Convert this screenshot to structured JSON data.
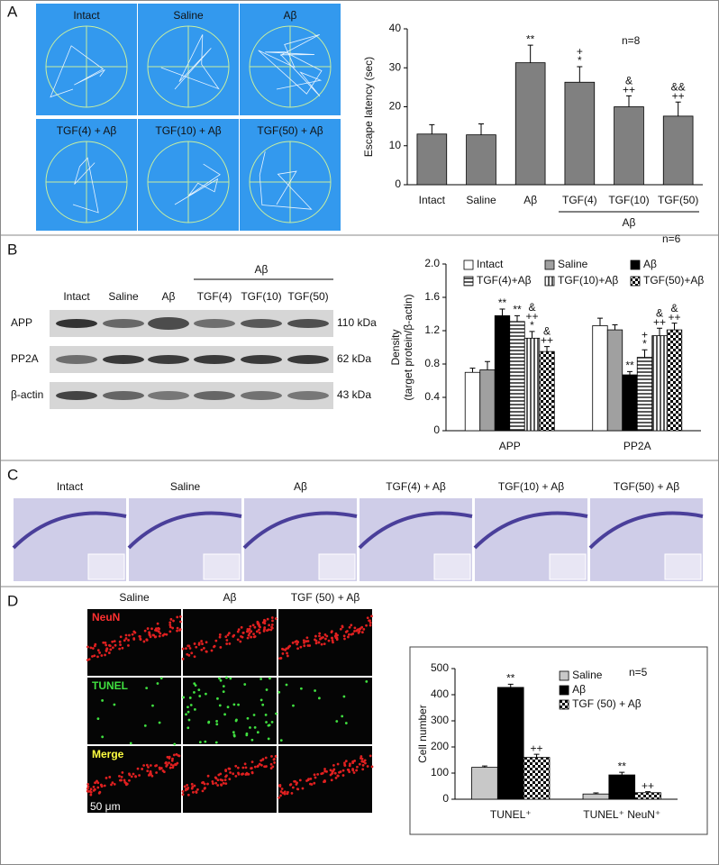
{
  "panel_labels": [
    "A",
    "B",
    "C",
    "D"
  ],
  "maze": {
    "labels": [
      "Intact",
      "Saline",
      "Aβ",
      "TGF(4) + Aβ",
      "TGF(10) + Aβ",
      "TGF(50) + Aβ"
    ]
  },
  "blot": {
    "group_label": "Aβ",
    "columns": [
      "Intact",
      "Saline",
      "Aβ",
      "TGF(4)",
      "TGF(10)",
      "TGF(50)"
    ],
    "rows": [
      {
        "name": "APP",
        "size": "110 kDa"
      },
      {
        "name": "PP2A",
        "size": "62 kDa"
      },
      {
        "name": "β-actin",
        "size": "43 kDa"
      }
    ]
  },
  "histology": {
    "labels": [
      "Intact",
      "Saline",
      "Aβ",
      "TGF(4) + Aβ",
      "TGF(10) + Aβ",
      "TGF(50) + Aβ"
    ]
  },
  "fluorescence": {
    "columns": [
      "Saline",
      "Aβ",
      "TGF (50) + Aβ"
    ],
    "rows": [
      "NeuN",
      "TUNEL",
      "Merge"
    ],
    "scale": "50 μm"
  },
  "chart_data": [
    {
      "type": "bar",
      "ylabel": "Escape latency (sec)",
      "sample_size": "n=8",
      "categories": [
        "Intact",
        "Saline",
        "Aβ",
        "TGF(4)",
        "TGF(10)",
        "TGF(50)"
      ],
      "values": [
        13,
        12.8,
        31.3,
        26.3,
        20,
        17.6
      ],
      "errors": [
        2.4,
        2.8,
        4.5,
        4,
        2.8,
        3.6
      ],
      "annotations": [
        null,
        null,
        [
          "**"
        ],
        [
          "+",
          "*"
        ],
        [
          "&",
          "++"
        ],
        [
          "&&",
          "++"
        ]
      ],
      "group": {
        "label": "Aβ",
        "span": [
          3,
          5
        ]
      },
      "color": "#808080",
      "ylim": [
        0,
        40
      ],
      "yticks": [
        0,
        10,
        20,
        30,
        40
      ]
    },
    {
      "type": "bar",
      "ylabel": [
        "Density",
        "(target protein/β-actin)"
      ],
      "sample_size": "n=6",
      "categories": [
        "APP",
        "PP2A"
      ],
      "legend": "top",
      "series": [
        {
          "name": "Intact",
          "color": "#ffffff",
          "pattern": "solid",
          "values": [
            0.7,
            1.26
          ],
          "errors": [
            0.05,
            0.09
          ],
          "annotations": [
            null,
            null
          ]
        },
        {
          "name": "Saline",
          "color": "#a0a0a0",
          "pattern": "solid",
          "values": [
            0.73,
            1.21
          ],
          "errors": [
            0.1,
            0.06
          ],
          "annotations": [
            null,
            null
          ]
        },
        {
          "name": "Aβ",
          "color": "#000000",
          "pattern": "solid",
          "values": [
            1.38,
            0.67
          ],
          "errors": [
            0.08,
            0.04
          ],
          "annotations": [
            [
              "**"
            ],
            [
              "**"
            ]
          ]
        },
        {
          "name": "TGF(4)+Aβ",
          "color": "#000000",
          "pattern": "hatch-h",
          "values": [
            1.31,
            0.88
          ],
          "errors": [
            0.07,
            0.09
          ],
          "annotations": [
            [
              "**"
            ],
            [
              "+",
              "*"
            ]
          ]
        },
        {
          "name": "TGF(10)+Aβ",
          "color": "#000000",
          "pattern": "hatch-v",
          "values": [
            1.11,
            1.14
          ],
          "errors": [
            0.08,
            0.09
          ],
          "annotations": [
            [
              "&",
              "++",
              "*"
            ],
            [
              "&",
              "++"
            ]
          ]
        },
        {
          "name": "TGF(50)+Aβ",
          "color": "#000000",
          "pattern": "checker",
          "values": [
            0.95,
            1.21
          ],
          "errors": [
            0.06,
            0.08
          ],
          "annotations": [
            [
              "&",
              "++"
            ],
            [
              "&",
              "++"
            ]
          ]
        }
      ],
      "ylim": [
        0,
        2
      ],
      "yticks": [
        0,
        0.4,
        0.8,
        1.2,
        1.6,
        {
          "value": 2,
          "label": "2.0"
        }
      ]
    },
    {
      "type": "bar",
      "ylabel": "Cell number",
      "sample_size": "n=5",
      "categories": [
        "TUNEL⁺",
        "TUNEL⁺ NeuN⁺"
      ],
      "legend": "right",
      "series": [
        {
          "name": "Saline",
          "color": "#c8c8c8",
          "pattern": "solid",
          "values": [
            122,
            20
          ],
          "errors": [
            5,
            4
          ],
          "annotations": [
            null,
            null
          ]
        },
        {
          "name": "Aβ",
          "color": "#000000",
          "pattern": "solid",
          "values": [
            428,
            93
          ],
          "errors": [
            12,
            10
          ],
          "annotations": [
            [
              "**"
            ],
            [
              "**"
            ]
          ]
        },
        {
          "name": "TGF (50) + Aβ",
          "color": "#000000",
          "pattern": "checker",
          "values": [
            160,
            25
          ],
          "errors": [
            12,
            4
          ],
          "annotations": [
            [
              "++"
            ],
            [
              "++"
            ]
          ]
        }
      ],
      "ylim": [
        0,
        500
      ],
      "yticks": [
        0,
        100,
        200,
        300,
        400,
        500
      ]
    }
  ]
}
